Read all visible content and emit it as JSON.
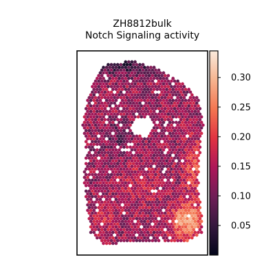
{
  "chart_data": {
    "type": "heatmap",
    "title_lines": [
      "ZH8812bulk",
      "Notch Signaling activity"
    ],
    "xlabel": "",
    "ylabel": "",
    "grid": false,
    "colormap": "rocket",
    "colorbar": {
      "vmin": 0.0,
      "vmax": 0.345,
      "tick_values": [
        0.05,
        0.1,
        0.15,
        0.2,
        0.25,
        0.3
      ],
      "tick_labels": [
        "0.05",
        "0.10",
        "0.15",
        "0.20",
        "0.25",
        "0.30"
      ]
    },
    "description_stops": [
      "#03051a",
      "#35193e",
      "#701f57",
      "#ad1759",
      "#e13342",
      "#f37651",
      "#f6b48f",
      "#faebdd"
    ]
  }
}
